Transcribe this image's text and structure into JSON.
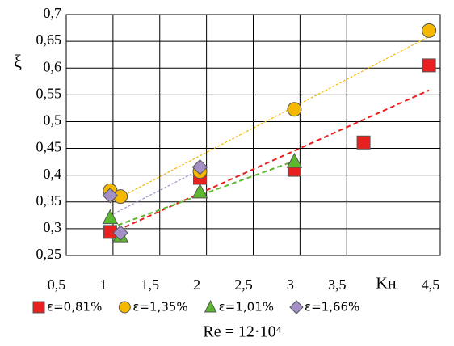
{
  "chart_data": {
    "type": "scatter",
    "subtitle": "Re = 12·10⁴",
    "x_label": "Kн",
    "y_label": "ξ",
    "xlim": [
      0.5,
      4.5
    ],
    "xticks": [
      {
        "value": 0.5,
        "label": "0,5"
      },
      1,
      {
        "value": 1.5,
        "label": "1,5"
      },
      2,
      {
        "value": 2.5,
        "label": "2,5"
      },
      3,
      {
        "value": 3.5,
        "label": "3,5"
      },
      {
        "value": 4.5,
        "label": "4,5"
      }
    ],
    "ylim": [
      0.25,
      0.7
    ],
    "yticks": [
      {
        "value": 0.25,
        "label": "0,25"
      },
      {
        "value": 0.3,
        "label": "0,3"
      },
      {
        "value": 0.35,
        "label": "0,35"
      },
      {
        "value": 0.4,
        "label": "0,4"
      },
      {
        "value": 0.45,
        "label": "0,45"
      },
      {
        "value": 0.5,
        "label": "0,5"
      },
      {
        "value": 0.55,
        "label": "0,55"
      },
      {
        "value": 0.6,
        "label": "0,6"
      },
      {
        "value": 0.65,
        "label": "0,65"
      },
      {
        "value": 0.7,
        "label": "0,7"
      }
    ],
    "grid": true,
    "trendlines": true,
    "legend": "bottom",
    "series": [
      {
        "name": "ε=0,81%",
        "color": "#e8201f",
        "marker": "square",
        "x": [
          0.97,
          1.93,
          2.94,
          3.68,
          4.38
        ],
        "values": [
          0.294,
          0.395,
          0.41,
          0.461,
          0.605
        ]
      },
      {
        "name": "ε=1,35%",
        "color": "#f5b800",
        "marker": "circle",
        "x": [
          0.97,
          1.08,
          1.93,
          2.94,
          4.38
        ],
        "values": [
          0.371,
          0.36,
          0.407,
          0.523,
          0.67
        ]
      },
      {
        "name": "ε=1,01%",
        "color": "#5cb82e",
        "marker": "triangle",
        "x": [
          0.97,
          1.08,
          1.93,
          2.94
        ],
        "values": [
          0.32,
          0.286,
          0.368,
          0.425
        ]
      },
      {
        "name": "ε=1,66%",
        "color": "#a58fc7",
        "marker": "diamond",
        "x": [
          0.97,
          1.08,
          1.93
        ],
        "values": [
          0.362,
          0.292,
          0.415
        ]
      }
    ]
  }
}
